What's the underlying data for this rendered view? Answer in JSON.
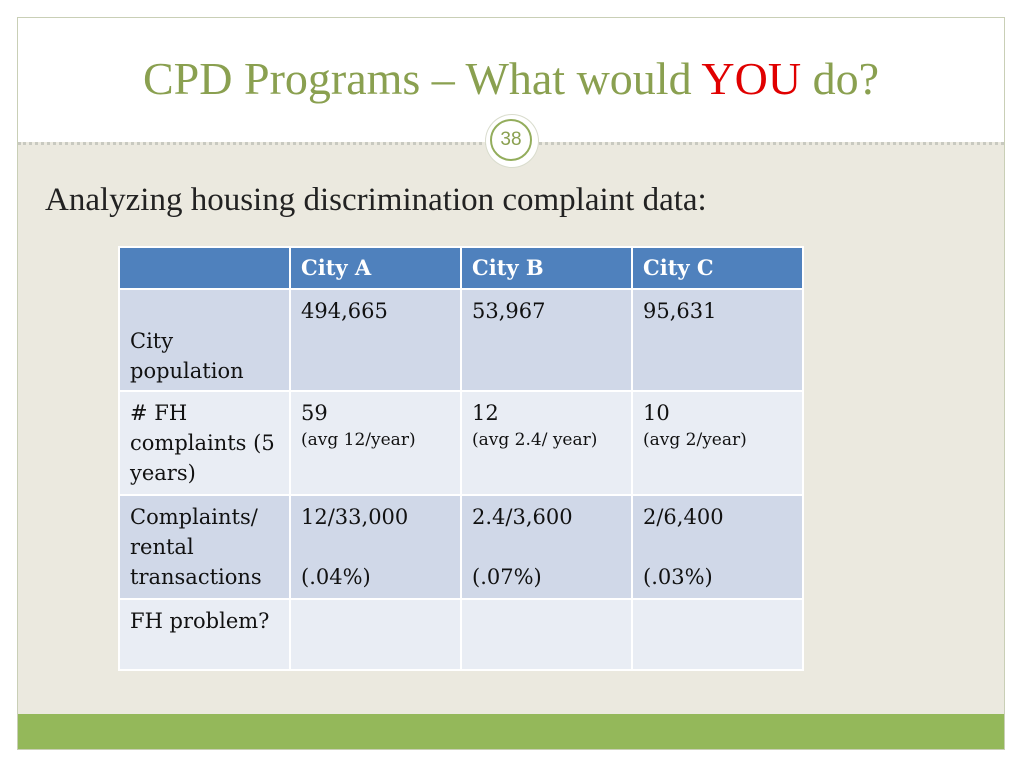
{
  "slide": {
    "title_part1": "CPD Programs – What would ",
    "title_emphasis": "YOU",
    "title_part2": " do?",
    "page_number": "38",
    "subtitle": "Analyzing housing discrimination complaint data:"
  },
  "table": {
    "headers": [
      "",
      "City A",
      "City B",
      "City C"
    ],
    "rows": [
      {
        "label": "City population",
        "cells": [
          "494,665",
          "53,967",
          "95,631"
        ]
      },
      {
        "label": "# FH complaints (5 years)",
        "cells": [
          {
            "main": "59",
            "note": "(avg 12/year)"
          },
          {
            "main": "12",
            "note": "(avg 2.4/ year)"
          },
          {
            "main": "10",
            "note": "(avg 2/year)"
          }
        ]
      },
      {
        "label": "Complaints/ rental transactions",
        "cells": [
          {
            "main": "12/33,000",
            "pct": "(.04%)"
          },
          {
            "main": "2.4/3,600",
            "pct": "(.07%)"
          },
          {
            "main": "2/6,400",
            "pct": "(.03%)"
          }
        ]
      },
      {
        "label": "FH problem?",
        "cells": [
          "",
          "",
          ""
        ]
      }
    ]
  },
  "colors": {
    "title": "#8aa050",
    "emphasis": "#e00000",
    "header_fill": "#4f81bd",
    "row_band": "#d0d8e8",
    "row_plain": "#e9edf4",
    "footer_bar": "#94b85a",
    "slide_background": "#ebe9df"
  }
}
